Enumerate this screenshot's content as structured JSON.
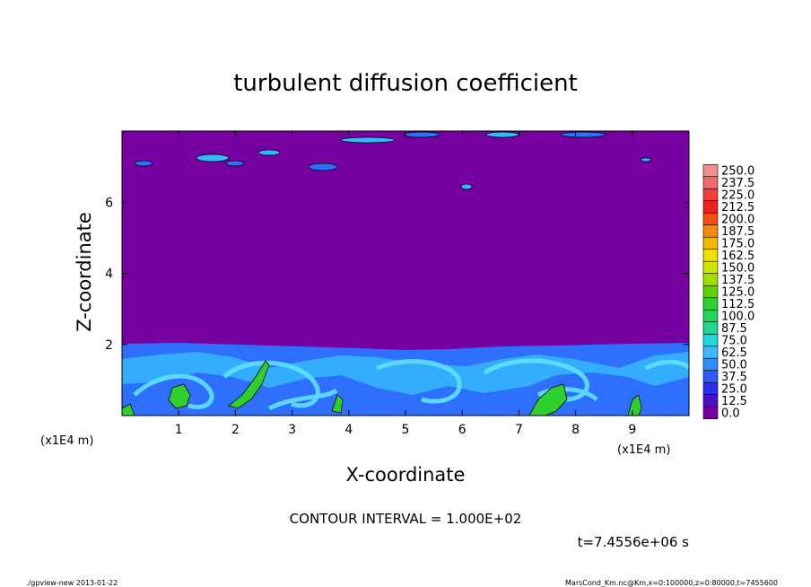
{
  "chart_data": {
    "type": "heatmap",
    "title": "turbulent diffusion coefficient",
    "xlabel": "X-coordinate",
    "ylabel": "Z-coordinate",
    "x_unit": "(x1E4 m)",
    "y_unit": "(x1E4 m)",
    "xlim": [
      0,
      10
    ],
    "ylim": [
      0,
      8
    ],
    "x_ticks": [
      "1",
      "2",
      "3",
      "4",
      "5",
      "6",
      "7",
      "8",
      "9"
    ],
    "y_ticks": [
      "2",
      "4",
      "6"
    ],
    "colorbar_levels": [
      "250.0",
      "237.5",
      "225.0",
      "212.5",
      "200.0",
      "187.5",
      "175.0",
      "162.5",
      "150.0",
      "137.5",
      "125.0",
      "112.5",
      "100.0",
      "87.5",
      "75.0",
      "62.5",
      "50.0",
      "37.5",
      "25.0",
      "12.5",
      "0.0"
    ],
    "colorbar_colors": [
      "#f28f8f",
      "#f26b6b",
      "#f23b3b",
      "#f01e1e",
      "#f54d12",
      "#f58a0a",
      "#f5b800",
      "#f0df00",
      "#cde600",
      "#a0e000",
      "#5fd400",
      "#2ed02e",
      "#22d45a",
      "#20d990",
      "#20d8d8",
      "#3fb8ff",
      "#2f8dff",
      "#2c5cff",
      "#2a2ff0",
      "#4a10c8",
      "#7600a0"
    ],
    "contour_interval": "CONTOUR INTERVAL = 1.000E+02",
    "time": "t=7.4556e+06 s",
    "mixed_layer_top_z": 2,
    "background_value": 0
  },
  "footer": {
    "left": "./gpview-new  2013-01-22",
    "right": "MarsCond_Km.nc@Km,x=0:100000,z=0:80000,t=7455600"
  }
}
